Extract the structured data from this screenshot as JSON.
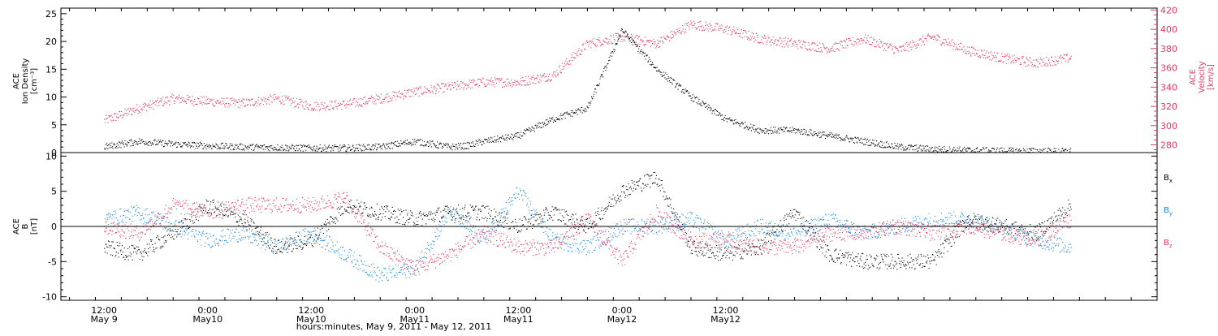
{
  "colors": {
    "black": "#000000",
    "pink": "#e8365f",
    "blue": "#1e88e5"
  },
  "chart_data": [
    {
      "type": "scatter",
      "panel": "top",
      "ylabel_lines": [
        "ACE",
        "Ion Density",
        "[cm⁻³]"
      ],
      "ylim": [
        0,
        26
      ],
      "yticks": [
        0,
        5,
        10,
        15,
        20,
        25
      ],
      "right_axis": {
        "label_lines": [
          "ACE",
          "Velocity",
          "[km/s]"
        ],
        "ylim": [
          272,
          422
        ],
        "yticks": [
          280,
          300,
          320,
          340,
          360,
          380,
          400,
          420
        ],
        "color": "#e8365f"
      },
      "series": [
        {
          "axis": "left",
          "color": "#000000",
          "x_hours": [
            0,
            4,
            8,
            12,
            16,
            20,
            24,
            28,
            32,
            34,
            36,
            38,
            40,
            42,
            44,
            48,
            52,
            56,
            60,
            64,
            68,
            72,
            76,
            80,
            84,
            88,
            92,
            96,
            100,
            104,
            108,
            112
          ],
          "values": [
            1,
            2,
            1.5,
            1.2,
            1,
            0.9,
            0.8,
            0.8,
            1,
            1.5,
            2,
            1.5,
            1,
            1.2,
            2,
            3,
            6,
            8,
            22,
            15,
            10,
            6,
            4,
            4,
            3,
            2,
            1,
            0.6,
            0.4,
            0.3,
            0.25,
            0.2
          ]
        },
        {
          "axis": "right",
          "color": "#e8365f",
          "x_hours": [
            0,
            4,
            8,
            12,
            16,
            20,
            24,
            28,
            32,
            36,
            40,
            44,
            48,
            52,
            56,
            60,
            64,
            68,
            72,
            76,
            80,
            84,
            88,
            92,
            96,
            100,
            104,
            108,
            112
          ],
          "values": [
            305,
            318,
            328,
            325,
            323,
            328,
            320,
            322,
            328,
            335,
            340,
            345,
            345,
            352,
            385,
            392,
            385,
            405,
            400,
            390,
            385,
            380,
            390,
            378,
            392,
            378,
            370,
            365,
            370
          ]
        }
      ]
    },
    {
      "type": "scatter",
      "panel": "bottom",
      "ylabel_lines": [
        "ACE",
        "B",
        "[nT]"
      ],
      "ylim": [
        -10.5,
        10.5
      ],
      "yticks": [
        -10,
        -5,
        0,
        5,
        10
      ],
      "legend": [
        {
          "label": "B",
          "sub": "x",
          "color": "#000000"
        },
        {
          "label": "B",
          "sub": "y",
          "color": "#1e88e5"
        },
        {
          "label": "B",
          "sub": "z",
          "color": "#e8365f"
        }
      ],
      "series": [
        {
          "color": "#000000",
          "x_hours": [
            0,
            4,
            8,
            12,
            16,
            20,
            24,
            28,
            32,
            36,
            40,
            44,
            48,
            52,
            56,
            60,
            64,
            68,
            72,
            76,
            80,
            84,
            88,
            92,
            96,
            100,
            104,
            108,
            112
          ],
          "values": [
            -3,
            -4,
            -1,
            3,
            1,
            -3,
            -2,
            3,
            2,
            1,
            2,
            2,
            0,
            2,
            0,
            5,
            7,
            -3,
            -4,
            -3,
            2,
            -4,
            -5,
            -5,
            -5,
            1,
            0,
            -1,
            3
          ]
        },
        {
          "color": "#1e88e5",
          "x_hours": [
            0,
            4,
            8,
            12,
            16,
            20,
            24,
            28,
            32,
            36,
            40,
            44,
            48,
            52,
            56,
            60,
            64,
            68,
            72,
            76,
            80,
            84,
            88,
            92,
            96,
            100,
            104,
            108,
            112
          ],
          "values": [
            1,
            2,
            0,
            -2,
            -1,
            -3,
            -1,
            -4,
            -7,
            -6,
            2,
            -2,
            5,
            -2,
            -3,
            0,
            0,
            1,
            -2,
            0,
            -1,
            1,
            -1,
            0,
            1,
            1,
            0,
            -2,
            -3
          ]
        },
        {
          "color": "#e8365f",
          "x_hours": [
            0,
            4,
            8,
            12,
            16,
            20,
            24,
            28,
            32,
            36,
            40,
            44,
            48,
            52,
            56,
            60,
            64,
            68,
            72,
            76,
            80,
            84,
            88,
            92,
            96,
            100,
            104,
            108,
            112
          ],
          "values": [
            0,
            -1,
            3,
            2,
            3,
            3,
            3,
            4,
            -3,
            -6,
            -4,
            -1,
            -3,
            -3,
            1,
            -5,
            2,
            -2,
            -2,
            -3,
            -3,
            -1,
            -1,
            0,
            -1,
            0,
            -1,
            -2,
            1
          ]
        }
      ]
    }
  ],
  "x_axis": {
    "range_hours": [
      -5,
      122
    ],
    "major_ticks": [
      {
        "h": 0,
        "top": "12:00",
        "bottom": "May 9"
      },
      {
        "h": 12,
        "top": "0:00",
        "bottom": "May10"
      },
      {
        "h": 24,
        "top": "12:00",
        "bottom": "May10"
      },
      {
        "h": 36,
        "top": "0:00",
        "bottom": "May11"
      },
      {
        "h": 48,
        "top": "12:00",
        "bottom": "May11"
      },
      {
        "h": 60,
        "top": "0:00",
        "bottom": "May12"
      },
      {
        "h": 72,
        "top": "12:00",
        "bottom": "May12"
      }
    ],
    "title": "hours:minutes, May  9, 2011 - May 12, 2011"
  }
}
